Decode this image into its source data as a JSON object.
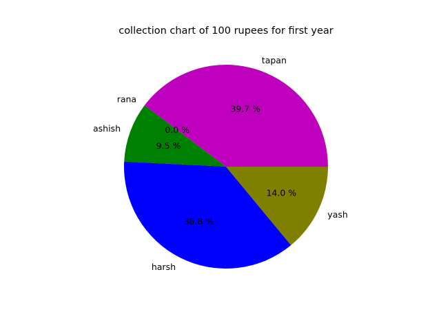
{
  "chart_data": {
    "type": "pie",
    "title": "collection chart of 100 rupees for first year",
    "slices": [
      {
        "label": "tapan",
        "value": 39.7,
        "pct_text": "39.7 %",
        "color": "#bf00bf"
      },
      {
        "label": "rana",
        "value": 0.0,
        "pct_text": "0.0 %",
        "color": "#ff0000"
      },
      {
        "label": "ashish",
        "value": 9.5,
        "pct_text": "9.5 %",
        "color": "#008000"
      },
      {
        "label": "harsh",
        "value": 36.8,
        "pct_text": "36.8 %",
        "color": "#0000ff"
      },
      {
        "label": "yash",
        "value": 14.0,
        "pct_text": "14.0 %",
        "color": "#808000"
      }
    ],
    "start_angle_deg": 0,
    "direction": "counterclockwise",
    "legend": "none"
  }
}
